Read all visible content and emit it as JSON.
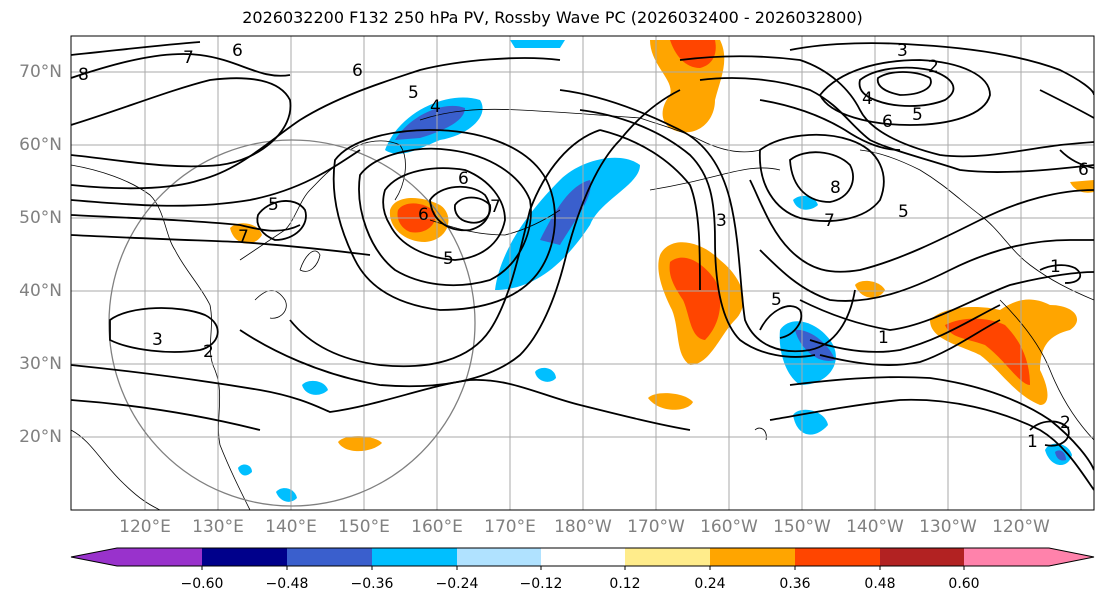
{
  "title": "2026032200 F132 250 hPa PV, Rossby Wave PC (2026032400 - 2026032800)",
  "lat_labels": [
    "70°N",
    "60°N",
    "50°N",
    "40°N",
    "30°N",
    "20°N"
  ],
  "lon_labels": [
    "120°E",
    "130°E",
    "140°E",
    "150°E",
    "160°E",
    "170°E",
    "180°W",
    "170°W",
    "160°W",
    "150°W",
    "140°W",
    "130°W",
    "120°W"
  ],
  "colorbar": {
    "ticks": [
      "−0.60",
      "−0.48",
      "−0.36",
      "−0.24",
      "−0.12",
      "0.12",
      "0.24",
      "0.36",
      "0.48",
      "0.60"
    ],
    "colors": [
      "#9932cc",
      "#00008b",
      "#3a5fcd",
      "#00bfff",
      "#b0e2ff",
      "#ffffff",
      "#ffec8b",
      "#ffa500",
      "#ff4500",
      "#b22222",
      "#ff82ab"
    ]
  },
  "contour_labels": [
    {
      "text": "8"
    },
    {
      "text": "7"
    },
    {
      "text": "6"
    },
    {
      "text": "6"
    },
    {
      "text": "5"
    },
    {
      "text": "4"
    },
    {
      "text": "3"
    },
    {
      "text": "2"
    },
    {
      "text": "4"
    },
    {
      "text": "6"
    },
    {
      "text": "5"
    },
    {
      "text": "6"
    },
    {
      "text": "5"
    },
    {
      "text": "7"
    },
    {
      "text": "7"
    },
    {
      "text": "6"
    },
    {
      "text": "5"
    },
    {
      "text": "8"
    },
    {
      "text": "7"
    },
    {
      "text": "5"
    },
    {
      "text": "3"
    },
    {
      "text": "5"
    },
    {
      "text": "1"
    },
    {
      "text": "1"
    },
    {
      "text": "3"
    },
    {
      "text": "2"
    },
    {
      "text": "1"
    },
    {
      "text": "2"
    },
    {
      "text": "6"
    }
  ]
}
